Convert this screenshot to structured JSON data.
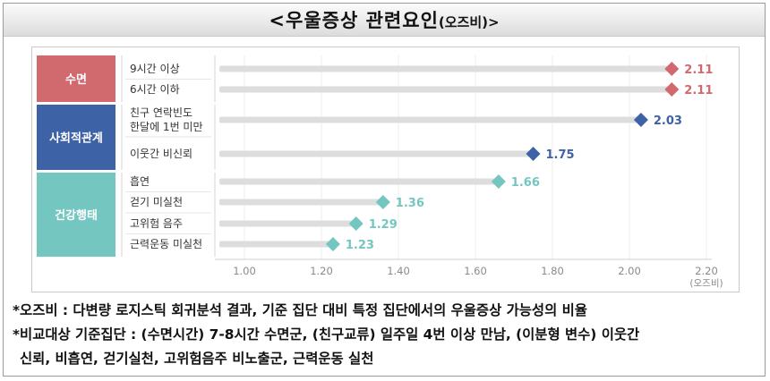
{
  "title_main": "<우울증상 관련요인",
  "title_paren": "(오즈비)>",
  "chart_data": {
    "type": "bar",
    "title": "<우울증상 관련요인(오즈비)>",
    "xlabel": "(오즈비)",
    "xlim": [
      1.0,
      2.2
    ],
    "ticks": [
      "1.00",
      "1.20",
      "1.40",
      "1.60",
      "1.80",
      "2.00",
      "2.20"
    ],
    "groups": [
      {
        "name": "수면",
        "color": "#d06a6f",
        "items": [
          {
            "label": "9시간 이상",
            "value": 2.11
          },
          {
            "label": "6시간 이하",
            "value": 2.11
          }
        ]
      },
      {
        "name": "사회적관계",
        "color": "#3d62a6",
        "items": [
          {
            "label": "친구 연락빈도 한달에 1번 미만",
            "label_lines": [
              "친구 연락빈도",
              "한달에 1번 미만"
            ],
            "value": 2.03
          },
          {
            "label": "이웃간 비신뢰",
            "value": 1.75
          }
        ]
      },
      {
        "name": "건강행태",
        "color": "#74c6c1",
        "items": [
          {
            "label": "흡연",
            "value": 1.66
          },
          {
            "label": "걷기 미실천",
            "value": 1.36
          },
          {
            "label": "고위험 음주",
            "value": 1.29
          },
          {
            "label": "근력운동 미실천",
            "value": 1.23
          }
        ]
      }
    ],
    "value_labels": [
      "2.11",
      "2.11",
      "2.03",
      "1.75",
      "1.66",
      "1.36",
      "1.29",
      "1.23"
    ],
    "marker_colors": [
      "#d06a6f",
      "#d06a6f",
      "#3d62a6",
      "#3d62a6",
      "#74c6c1",
      "#74c6c1",
      "#74c6c1",
      "#74c6c1"
    ],
    "label_colors": [
      "#d06a6f",
      "#d06a6f",
      "#3d62a6",
      "#3d62a6",
      "#74c6c1",
      "#74c6c1",
      "#74c6c1",
      "#74c6c1"
    ],
    "bar_color": "#dddddd",
    "grid": true
  },
  "notes": [
    "*오즈비 : 다변량 로지스틱 회귀분석 결과, 기준 집단 대비 특정 집단에서의 우울증상 가능성의 비율",
    "*비교대상 기준집단 : (수면시간) 7-8시간 수면군, (친구교류) 일주일 4번 이상 만남, (이분형 변수) 이웃간",
    "신뢰, 비흡연, 걷기실천, 고위험음주 비노출군, 근력운동 실천"
  ]
}
